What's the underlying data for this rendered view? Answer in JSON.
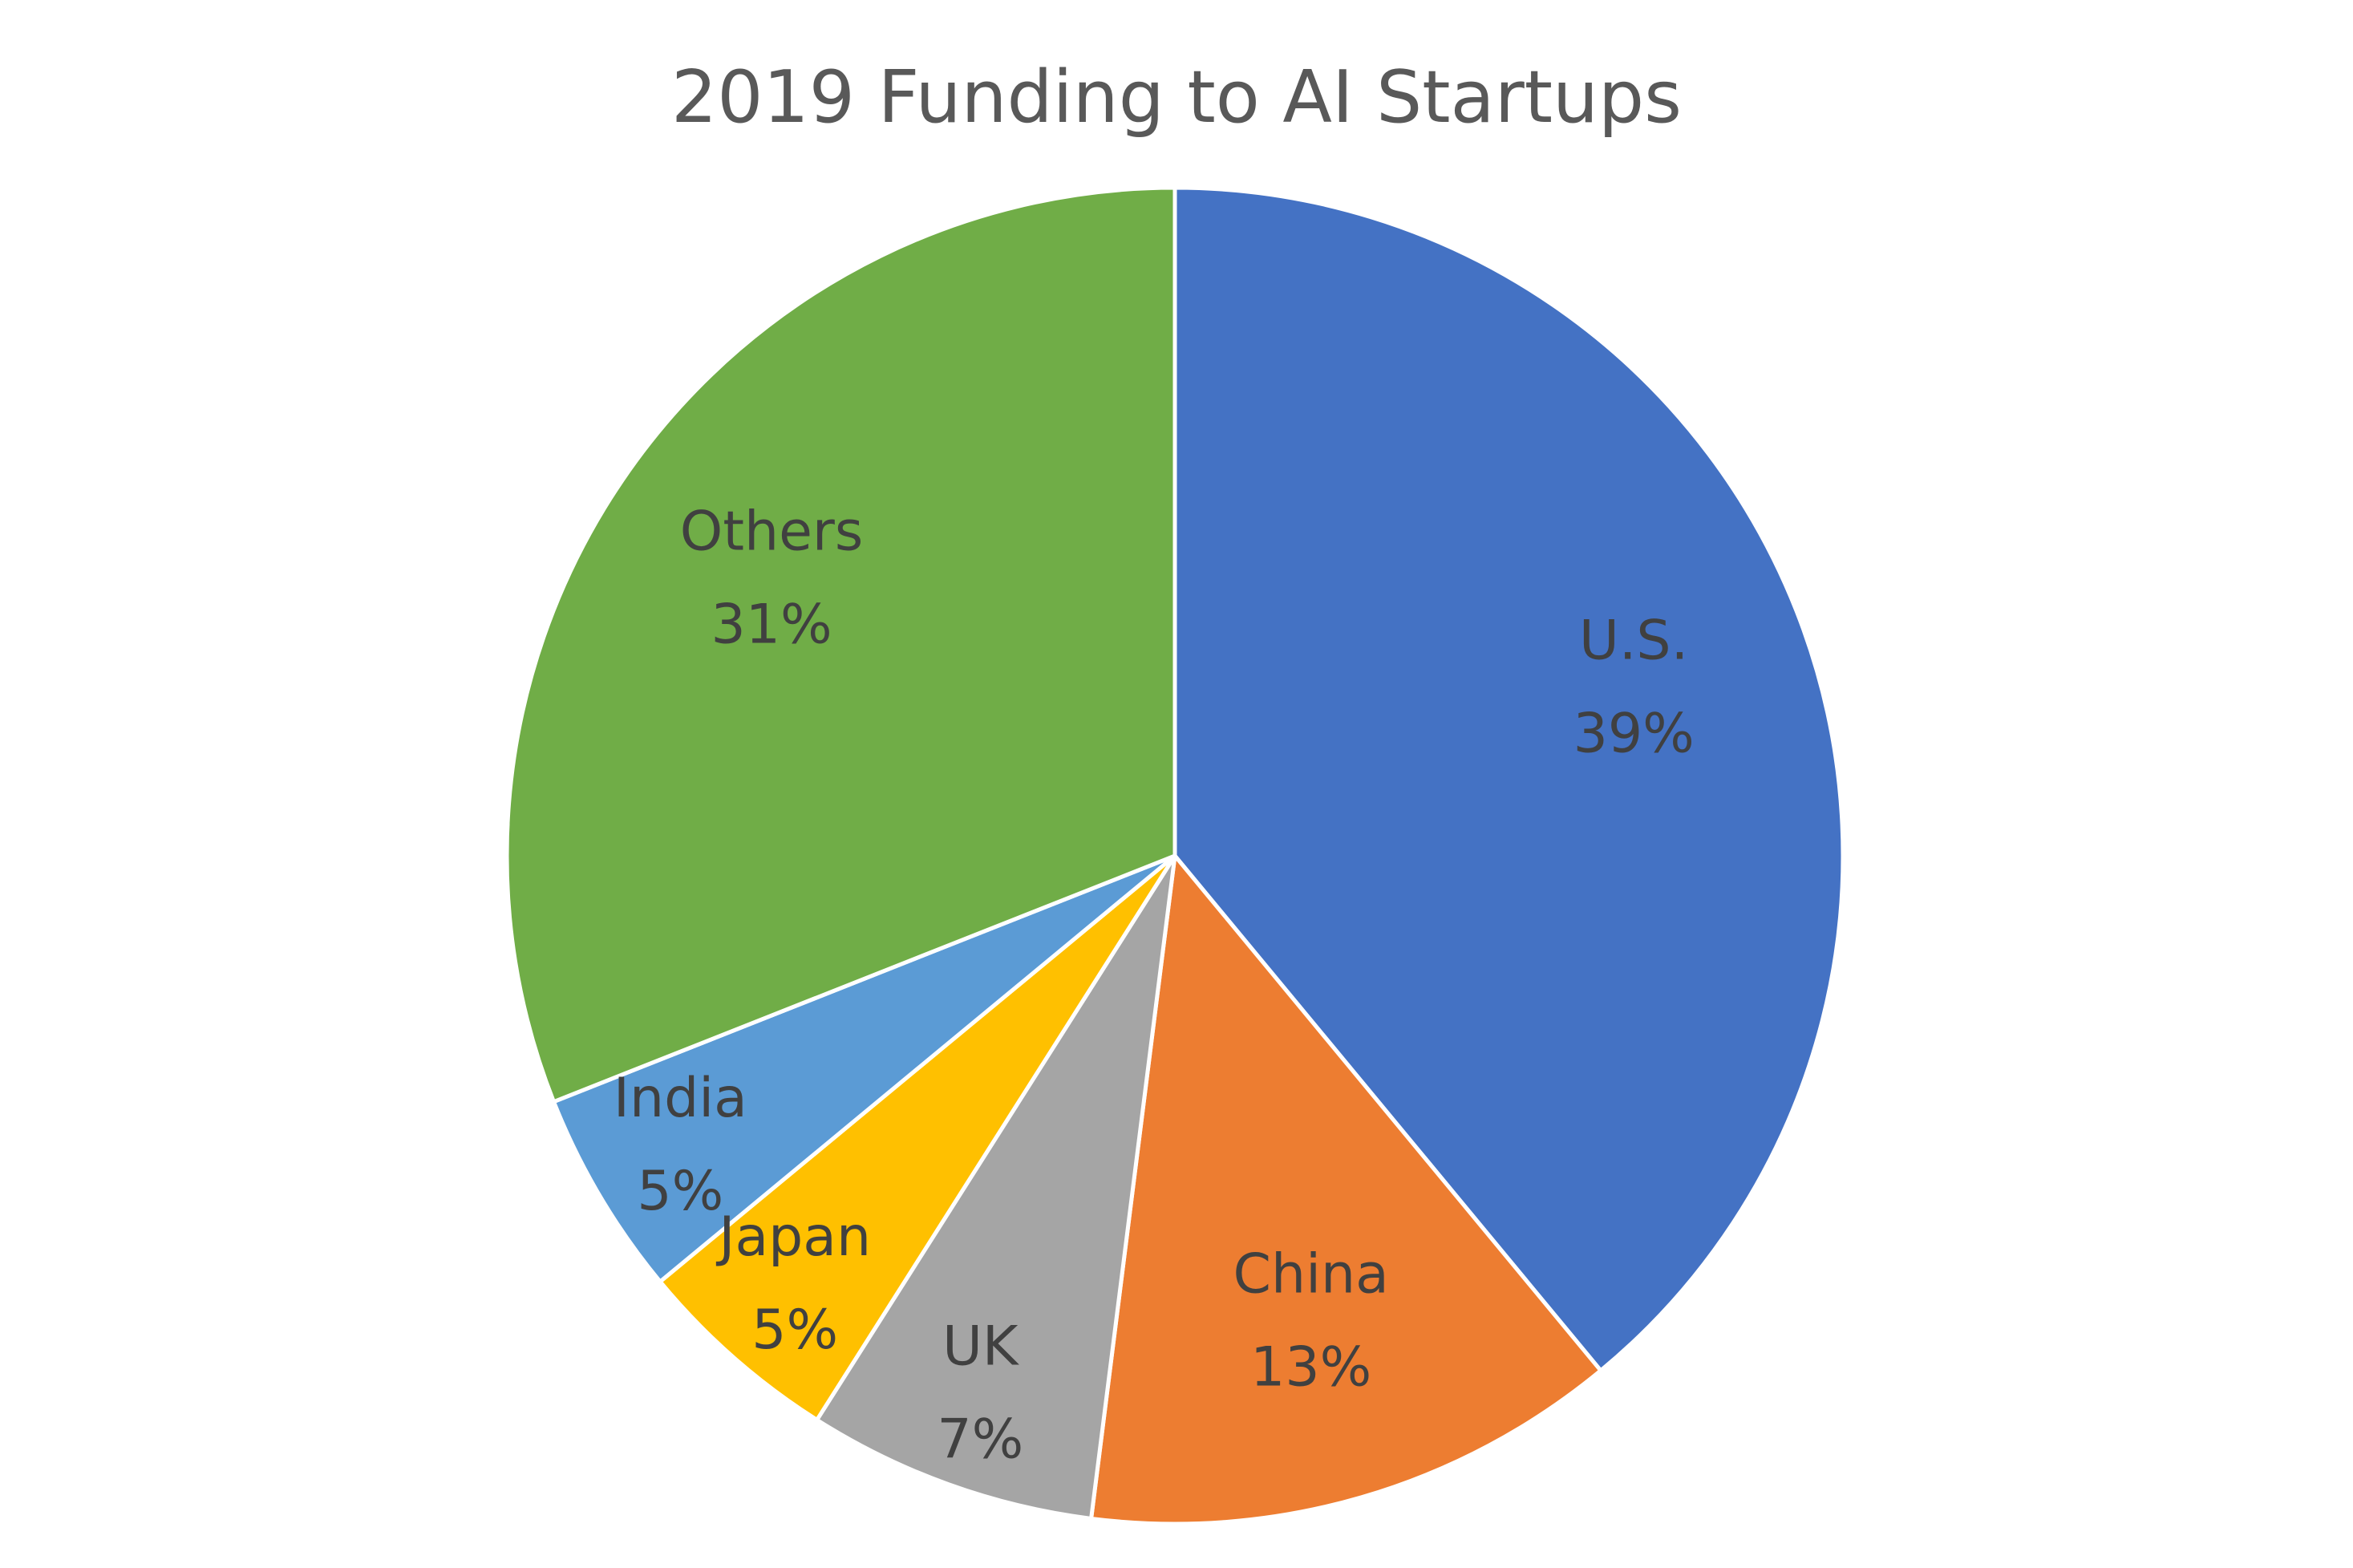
{
  "chart_data": {
    "type": "pie",
    "title": "2019 Funding to AI Startups",
    "categories": [
      "U.S.",
      "China",
      "UK",
      "Japan",
      "India",
      "Others"
    ],
    "values": [
      39,
      13,
      7,
      5,
      5,
      31
    ],
    "value_labels": [
      "39%",
      "13%",
      "7%",
      "5%",
      "5%",
      "31%"
    ],
    "colors": [
      "#4472c4",
      "#ed7d31",
      "#a5a5a5",
      "#ffc000",
      "#5b9bd5",
      "#70ad47"
    ]
  }
}
